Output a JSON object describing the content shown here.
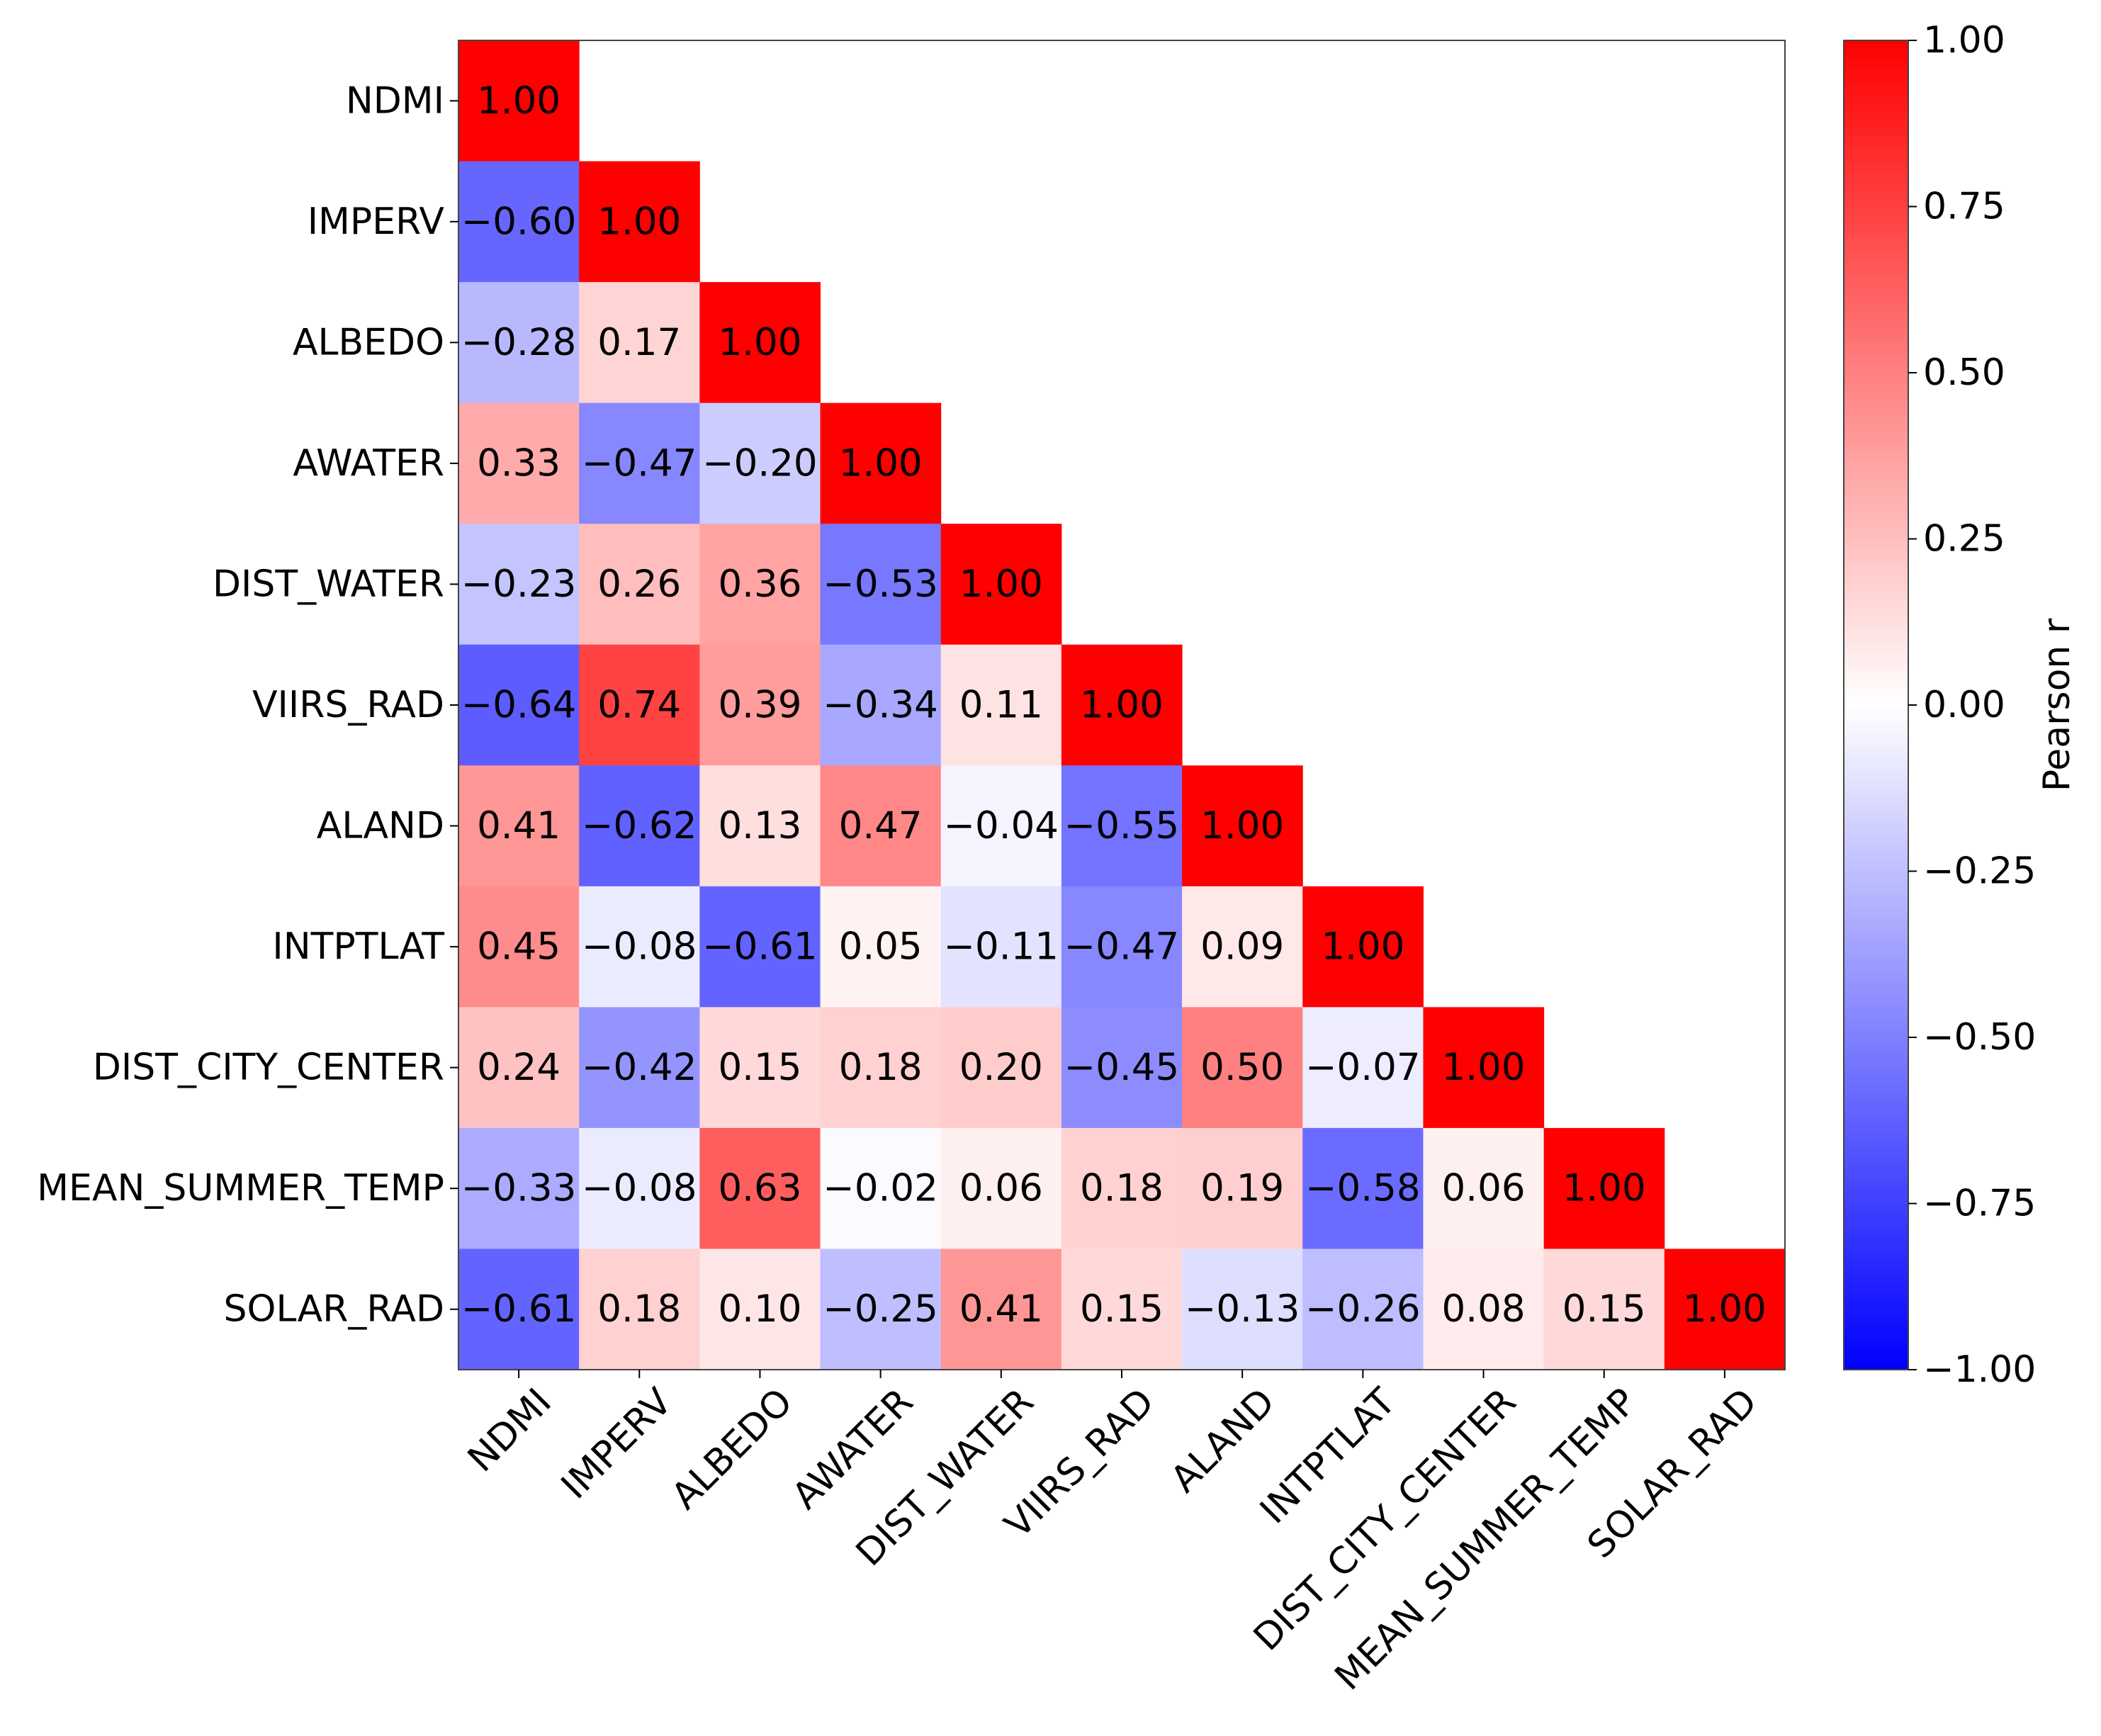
{
  "chart_data": {
    "type": "heatmap",
    "title": "",
    "variables": [
      "NDMI",
      "IMPERV",
      "ALBEDO",
      "AWATER",
      "DIST_WATER",
      "VIIRS_RAD",
      "ALAND",
      "INTPTLAT",
      "DIST_CITY_CENTER",
      "MEAN_SUMMER_TEMP",
      "SOLAR_RAD"
    ],
    "lower_triangle": [
      [
        1.0
      ],
      [
        -0.6,
        1.0
      ],
      [
        -0.28,
        0.17,
        1.0
      ],
      [
        0.33,
        -0.47,
        -0.2,
        1.0
      ],
      [
        -0.23,
        0.26,
        0.36,
        -0.53,
        1.0
      ],
      [
        -0.64,
        0.74,
        0.39,
        -0.34,
        0.11,
        1.0
      ],
      [
        0.41,
        -0.62,
        0.13,
        0.47,
        -0.04,
        -0.55,
        1.0
      ],
      [
        0.45,
        -0.08,
        -0.61,
        0.05,
        -0.11,
        -0.47,
        0.09,
        1.0
      ],
      [
        0.24,
        -0.42,
        0.15,
        0.18,
        0.2,
        -0.45,
        0.5,
        -0.07,
        1.0
      ],
      [
        -0.33,
        -0.08,
        0.63,
        -0.02,
        0.06,
        0.18,
        0.19,
        -0.58,
        0.06,
        1.0
      ],
      [
        -0.61,
        0.18,
        0.1,
        -0.25,
        0.41,
        0.15,
        -0.13,
        -0.26,
        0.08,
        0.15,
        1.0
      ]
    ],
    "colormap": "bwr",
    "vlim": [
      -1.0,
      1.0
    ],
    "colorbar": {
      "label": "Pearson r",
      "ticks": [
        1.0,
        0.75,
        0.5,
        0.25,
        0.0,
        -0.25,
        -0.5,
        -0.75,
        -1.0
      ],
      "tick_labels": [
        "1.00",
        "0.75",
        "0.50",
        "0.25",
        "0.00",
        "−0.25",
        "−0.50",
        "−0.75",
        "−1.00"
      ]
    },
    "colors": {
      "low": "#0000ff",
      "mid": "#ffffff",
      "high": "#ff0000"
    }
  }
}
